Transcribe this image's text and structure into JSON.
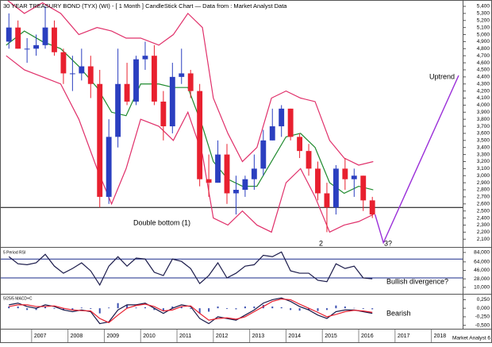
{
  "title": "30 YEAR TREASURY BOND (TYX) (WI) - [ 1 Month ] CandleStick Chart — Data from : Market Analyst Data",
  "footer": "Market Analyst 6",
  "chart_data": [
    {
      "type": "candlestick",
      "x": [
        2006.375,
        2006.625,
        2006.875,
        2007.125,
        2007.375,
        2007.625,
        2007.875,
        2008.125,
        2008.375,
        2008.625,
        2008.875,
        2009.125,
        2009.375,
        2009.625,
        2009.875,
        2010.125,
        2010.375,
        2010.625,
        2010.875,
        2011.125,
        2011.375,
        2011.625,
        2011.875,
        2012.125,
        2012.375,
        2012.625,
        2012.875,
        2013.125,
        2013.375,
        2013.625,
        2013.875,
        2014.125,
        2014.375,
        2014.625,
        2014.875,
        2015.125,
        2015.375,
        2015.625,
        2015.875,
        2016.125,
        2016.375
      ],
      "open": [
        4900,
        5100,
        4800,
        4800,
        4850,
        5100,
        4750,
        4450,
        4450,
        4550,
        4300,
        2700,
        3550,
        4300,
        4050,
        4650,
        4700,
        4050,
        3700,
        4400,
        4450,
        4200,
        2950,
        2900,
        3300,
        2750,
        2800,
        2950,
        3100,
        3500,
        3700,
        3950,
        3550,
        3350,
        3100,
        2750,
        2550,
        3100,
        2950,
        3000,
        2650
      ],
      "high": [
        5300,
        5200,
        4950,
        5000,
        5400,
        5200,
        4800,
        4700,
        4800,
        4700,
        4500,
        3800,
        4800,
        4600,
        4700,
        4900,
        4850,
        4200,
        4600,
        4800,
        4500,
        4300,
        3300,
        3500,
        3450,
        3000,
        3000,
        3300,
        3650,
        3950,
        4000,
        3950,
        3600,
        3450,
        3200,
        2900,
        3150,
        3250,
        3100,
        3000,
        2700
      ],
      "low": [
        4800,
        4800,
        4600,
        4700,
        4800,
        4700,
        4300,
        4200,
        4350,
        4100,
        2550,
        2600,
        3400,
        4000,
        4000,
        4500,
        4000,
        3500,
        3600,
        4300,
        4100,
        2850,
        2700,
        2900,
        2600,
        2450,
        2700,
        2800,
        3000,
        3500,
        3550,
        3500,
        3250,
        3000,
        2650,
        2200,
        2450,
        2800,
        2700,
        2500,
        2400
      ],
      "close": [
        5100,
        4800,
        4800,
        4850,
        5100,
        4750,
        4450,
        4450,
        4550,
        4300,
        2700,
        3550,
        4300,
        4050,
        4650,
        4700,
        4050,
        3700,
        4400,
        4450,
        4200,
        2950,
        2900,
        3300,
        2750,
        2800,
        2950,
        3100,
        3500,
        3700,
        3950,
        3550,
        3350,
        3100,
        2750,
        2550,
        3100,
        2950,
        3000,
        2650,
        2450
      ],
      "up_color": "#2b3fc0",
      "down_color": "#e8202f",
      "overlays": [
        {
          "color": "#e0306a",
          "x": [
            2006.3,
            2006.8,
            2007.3,
            2007.8,
            2008.3,
            2008.8,
            2009.2,
            2009.6,
            2010.0,
            2010.5,
            2010.9,
            2011.3,
            2011.7,
            2012.0,
            2012.4,
            2012.8,
            2013.2,
            2013.6,
            2014.0,
            2014.4,
            2014.8,
            2015.2,
            2015.6,
            2016.0,
            2016.4
          ],
          "values": [
            5500,
            5300,
            5450,
            5300,
            5000,
            5100,
            5050,
            4950,
            4950,
            4850,
            5000,
            5300,
            5100,
            4100,
            3600,
            3200,
            3400,
            4100,
            4200,
            4100,
            4050,
            3500,
            3250,
            3150,
            3200
          ]
        },
        {
          "color": "#e0306a",
          "x": [
            2006.3,
            2006.8,
            2007.3,
            2007.8,
            2008.3,
            2008.8,
            2009.2,
            2009.6,
            2010.0,
            2010.5,
            2010.9,
            2011.3,
            2011.7,
            2012.0,
            2012.4,
            2012.8,
            2013.2,
            2013.6,
            2014.0,
            2014.4,
            2014.8,
            2015.2,
            2015.6,
            2016.0,
            2016.4
          ],
          "values": [
            4700,
            4500,
            4400,
            4300,
            3800,
            3100,
            2600,
            3100,
            3800,
            3700,
            3500,
            3900,
            3300,
            2400,
            2300,
            2500,
            2300,
            2200,
            2900,
            3100,
            2700,
            2200,
            2300,
            2350,
            2450
          ]
        },
        {
          "color": "#1f8a2e",
          "x": [
            2006.3,
            2006.8,
            2007.3,
            2007.8,
            2008.3,
            2008.8,
            2009.2,
            2009.6,
            2010.0,
            2010.5,
            2010.9,
            2011.3,
            2011.7,
            2012.0,
            2012.4,
            2012.8,
            2013.2,
            2013.6,
            2014.0,
            2014.4,
            2014.8,
            2015.2,
            2015.6,
            2016.0,
            2016.4
          ],
          "values": [
            4850,
            5050,
            4900,
            4800,
            4550,
            4250,
            3900,
            3850,
            4300,
            4300,
            4250,
            4250,
            3700,
            3200,
            2950,
            2850,
            2850,
            3200,
            3550,
            3600,
            3400,
            2900,
            2750,
            2850,
            2800
          ]
        }
      ],
      "hlines": [
        2550
      ],
      "projection": {
        "color": "#9b30d9",
        "x": [
          2016.45,
          2016.68,
          2018.75
        ],
        "values": [
          2450,
          2050,
          4420
        ]
      },
      "annotations": [
        "Double bottom (1)",
        "2",
        "3?",
        "Uptrend"
      ],
      "xlim": [
        2006.13,
        2018.86
      ],
      "xticks": [
        2007,
        2008,
        2009,
        2010,
        2011,
        2012,
        2013,
        2014,
        2015,
        2016,
        2017,
        2018
      ],
      "ylim": [
        1990,
        5490
      ],
      "yticks": [
        {
          "value": 2100,
          "label": "2,100"
        },
        {
          "value": 2200,
          "label": "2,200"
        },
        {
          "value": 2300,
          "label": "2,300"
        },
        {
          "value": 2400,
          "label": "2,400"
        },
        {
          "value": 2500,
          "label": "2,500"
        },
        {
          "value": 2600,
          "label": "2,600"
        },
        {
          "value": 2700,
          "label": "2,700"
        },
        {
          "value": 2800,
          "label": "2,800"
        },
        {
          "value": 2900,
          "label": "2,900"
        },
        {
          "value": 3000,
          "label": "3,000"
        },
        {
          "value": 3100,
          "label": "3,100"
        },
        {
          "value": 3200,
          "label": "3,200"
        },
        {
          "value": 3300,
          "label": "3,300"
        },
        {
          "value": 3400,
          "label": "3,400"
        },
        {
          "value": 3500,
          "label": "3,500"
        },
        {
          "value": 3600,
          "label": "3,600"
        },
        {
          "value": 3700,
          "label": "3,700"
        },
        {
          "value": 3800,
          "label": "3,800"
        },
        {
          "value": 3900,
          "label": "3,900"
        },
        {
          "value": 4000,
          "label": "4,000"
        },
        {
          "value": 4100,
          "label": "4,100"
        },
        {
          "value": 4200,
          "label": "4,200"
        },
        {
          "value": 4300,
          "label": "4,300"
        },
        {
          "value": 4400,
          "label": "4,400"
        },
        {
          "value": 4500,
          "label": "4,500"
        },
        {
          "value": 4600,
          "label": "4,600"
        },
        {
          "value": 4700,
          "label": "4,700"
        },
        {
          "value": 4800,
          "label": "4,800"
        },
        {
          "value": 4900,
          "label": "4,900"
        },
        {
          "value": 5000,
          "label": "5,000"
        },
        {
          "value": 5100,
          "label": "5,100"
        },
        {
          "value": 5200,
          "label": "5,200"
        },
        {
          "value": 5300,
          "label": "5,300"
        },
        {
          "value": 5400,
          "label": "5,400"
        }
      ]
    },
    {
      "type": "line",
      "title": "5 Period RSI",
      "annotation": "Bullish divergence?",
      "x": [
        2006.375,
        2006.625,
        2006.875,
        2007.125,
        2007.375,
        2007.625,
        2007.875,
        2008.125,
        2008.375,
        2008.625,
        2008.875,
        2009.125,
        2009.375,
        2009.625,
        2009.875,
        2010.125,
        2010.375,
        2010.625,
        2010.875,
        2011.125,
        2011.375,
        2011.625,
        2011.875,
        2012.125,
        2012.375,
        2012.625,
        2012.875,
        2013.125,
        2013.375,
        2013.625,
        2013.875,
        2014.125,
        2014.375,
        2014.625,
        2014.875,
        2015.125,
        2015.375,
        2015.625,
        2015.875,
        2016.125,
        2016.375
      ],
      "series": [
        {
          "color": "#1a1a4a",
          "values": [
            75,
            60,
            58,
            62,
            80,
            55,
            40,
            50,
            62,
            45,
            15,
            55,
            75,
            55,
            72,
            70,
            42,
            35,
            70,
            65,
            50,
            18,
            35,
            62,
            30,
            40,
            55,
            58,
            78,
            75,
            85,
            45,
            40,
            40,
            25,
            22,
            60,
            50,
            55,
            30,
            28
          ]
        }
      ],
      "hlines": [
        70,
        30
      ],
      "hline_color": "#1a2a8a",
      "xlim": [
        2006.13,
        2018.86
      ],
      "ylim": [
        -2,
        94
      ],
      "yticks": [
        {
          "value": 10,
          "label": "10,000"
        },
        {
          "value": 28,
          "label": "28,000"
        },
        {
          "value": 46,
          "label": "46,000"
        },
        {
          "value": 64,
          "label": "64,000"
        },
        {
          "value": 84,
          "label": "84,000"
        }
      ]
    },
    {
      "type": "macd",
      "title": "5/25/5 MACD+C",
      "annotation": "Bearish",
      "x": [
        2006.375,
        2006.625,
        2006.875,
        2007.125,
        2007.375,
        2007.625,
        2007.875,
        2008.125,
        2008.375,
        2008.625,
        2008.875,
        2009.125,
        2009.375,
        2009.625,
        2009.875,
        2010.125,
        2010.375,
        2010.625,
        2010.875,
        2011.125,
        2011.375,
        2011.625,
        2011.875,
        2012.125,
        2012.375,
        2012.625,
        2012.875,
        2013.125,
        2013.375,
        2013.625,
        2013.875,
        2014.125,
        2014.375,
        2014.625,
        2014.875,
        2015.125,
        2015.375,
        2015.625,
        2015.875,
        2016.125,
        2016.375
      ],
      "series": [
        {
          "color": "#1a1a4a",
          "values": [
            0.1,
            0.15,
            0.05,
            0.0,
            0.1,
            0.05,
            -0.05,
            -0.1,
            -0.05,
            -0.1,
            -0.45,
            -0.4,
            -0.05,
            0.1,
            0.1,
            0.15,
            0.0,
            -0.15,
            0.0,
            0.1,
            0.05,
            -0.3,
            -0.45,
            -0.25,
            -0.3,
            -0.35,
            -0.2,
            -0.05,
            0.15,
            0.25,
            0.3,
            0.2,
            0.05,
            -0.05,
            -0.2,
            -0.3,
            -0.1,
            -0.05,
            -0.05,
            -0.1,
            -0.15
          ]
        },
        {
          "color": "#e8202f",
          "values": [
            0.05,
            0.1,
            0.1,
            0.05,
            0.05,
            0.07,
            0.0,
            -0.05,
            -0.07,
            -0.08,
            -0.3,
            -0.42,
            -0.2,
            0.0,
            0.08,
            0.12,
            0.05,
            -0.08,
            -0.05,
            0.05,
            0.07,
            -0.15,
            -0.35,
            -0.3,
            -0.28,
            -0.32,
            -0.25,
            -0.1,
            0.05,
            0.2,
            0.27,
            0.25,
            0.12,
            0.0,
            -0.12,
            -0.25,
            -0.18,
            -0.1,
            -0.06,
            -0.08,
            -0.12
          ]
        }
      ],
      "histogram": {
        "color": "#3a4fb0",
        "values": [
          0.05,
          0.05,
          -0.05,
          -0.05,
          0.05,
          -0.02,
          -0.05,
          -0.05,
          0.02,
          -0.02,
          -0.15,
          0.02,
          0.15,
          0.1,
          0.02,
          0.03,
          -0.05,
          -0.07,
          0.05,
          0.05,
          -0.02,
          -0.15,
          -0.1,
          0.05,
          -0.02,
          -0.03,
          0.05,
          0.05,
          0.1,
          0.05,
          0.03,
          -0.05,
          -0.07,
          -0.05,
          -0.08,
          -0.05,
          0.08,
          0.05,
          0.01,
          -0.02,
          -0.03
        ]
      },
      "xlim": [
        2006.13,
        2018.86
      ],
      "ylim": [
        -0.6,
        0.4
      ],
      "yticks": [
        {
          "value": -0.5,
          "label": "-0,500"
        },
        {
          "value": -0.25,
          "label": "-0,250"
        },
        {
          "value": 0,
          "label": "0,000"
        },
        {
          "value": 0.25,
          "label": "0,250"
        }
      ]
    }
  ]
}
